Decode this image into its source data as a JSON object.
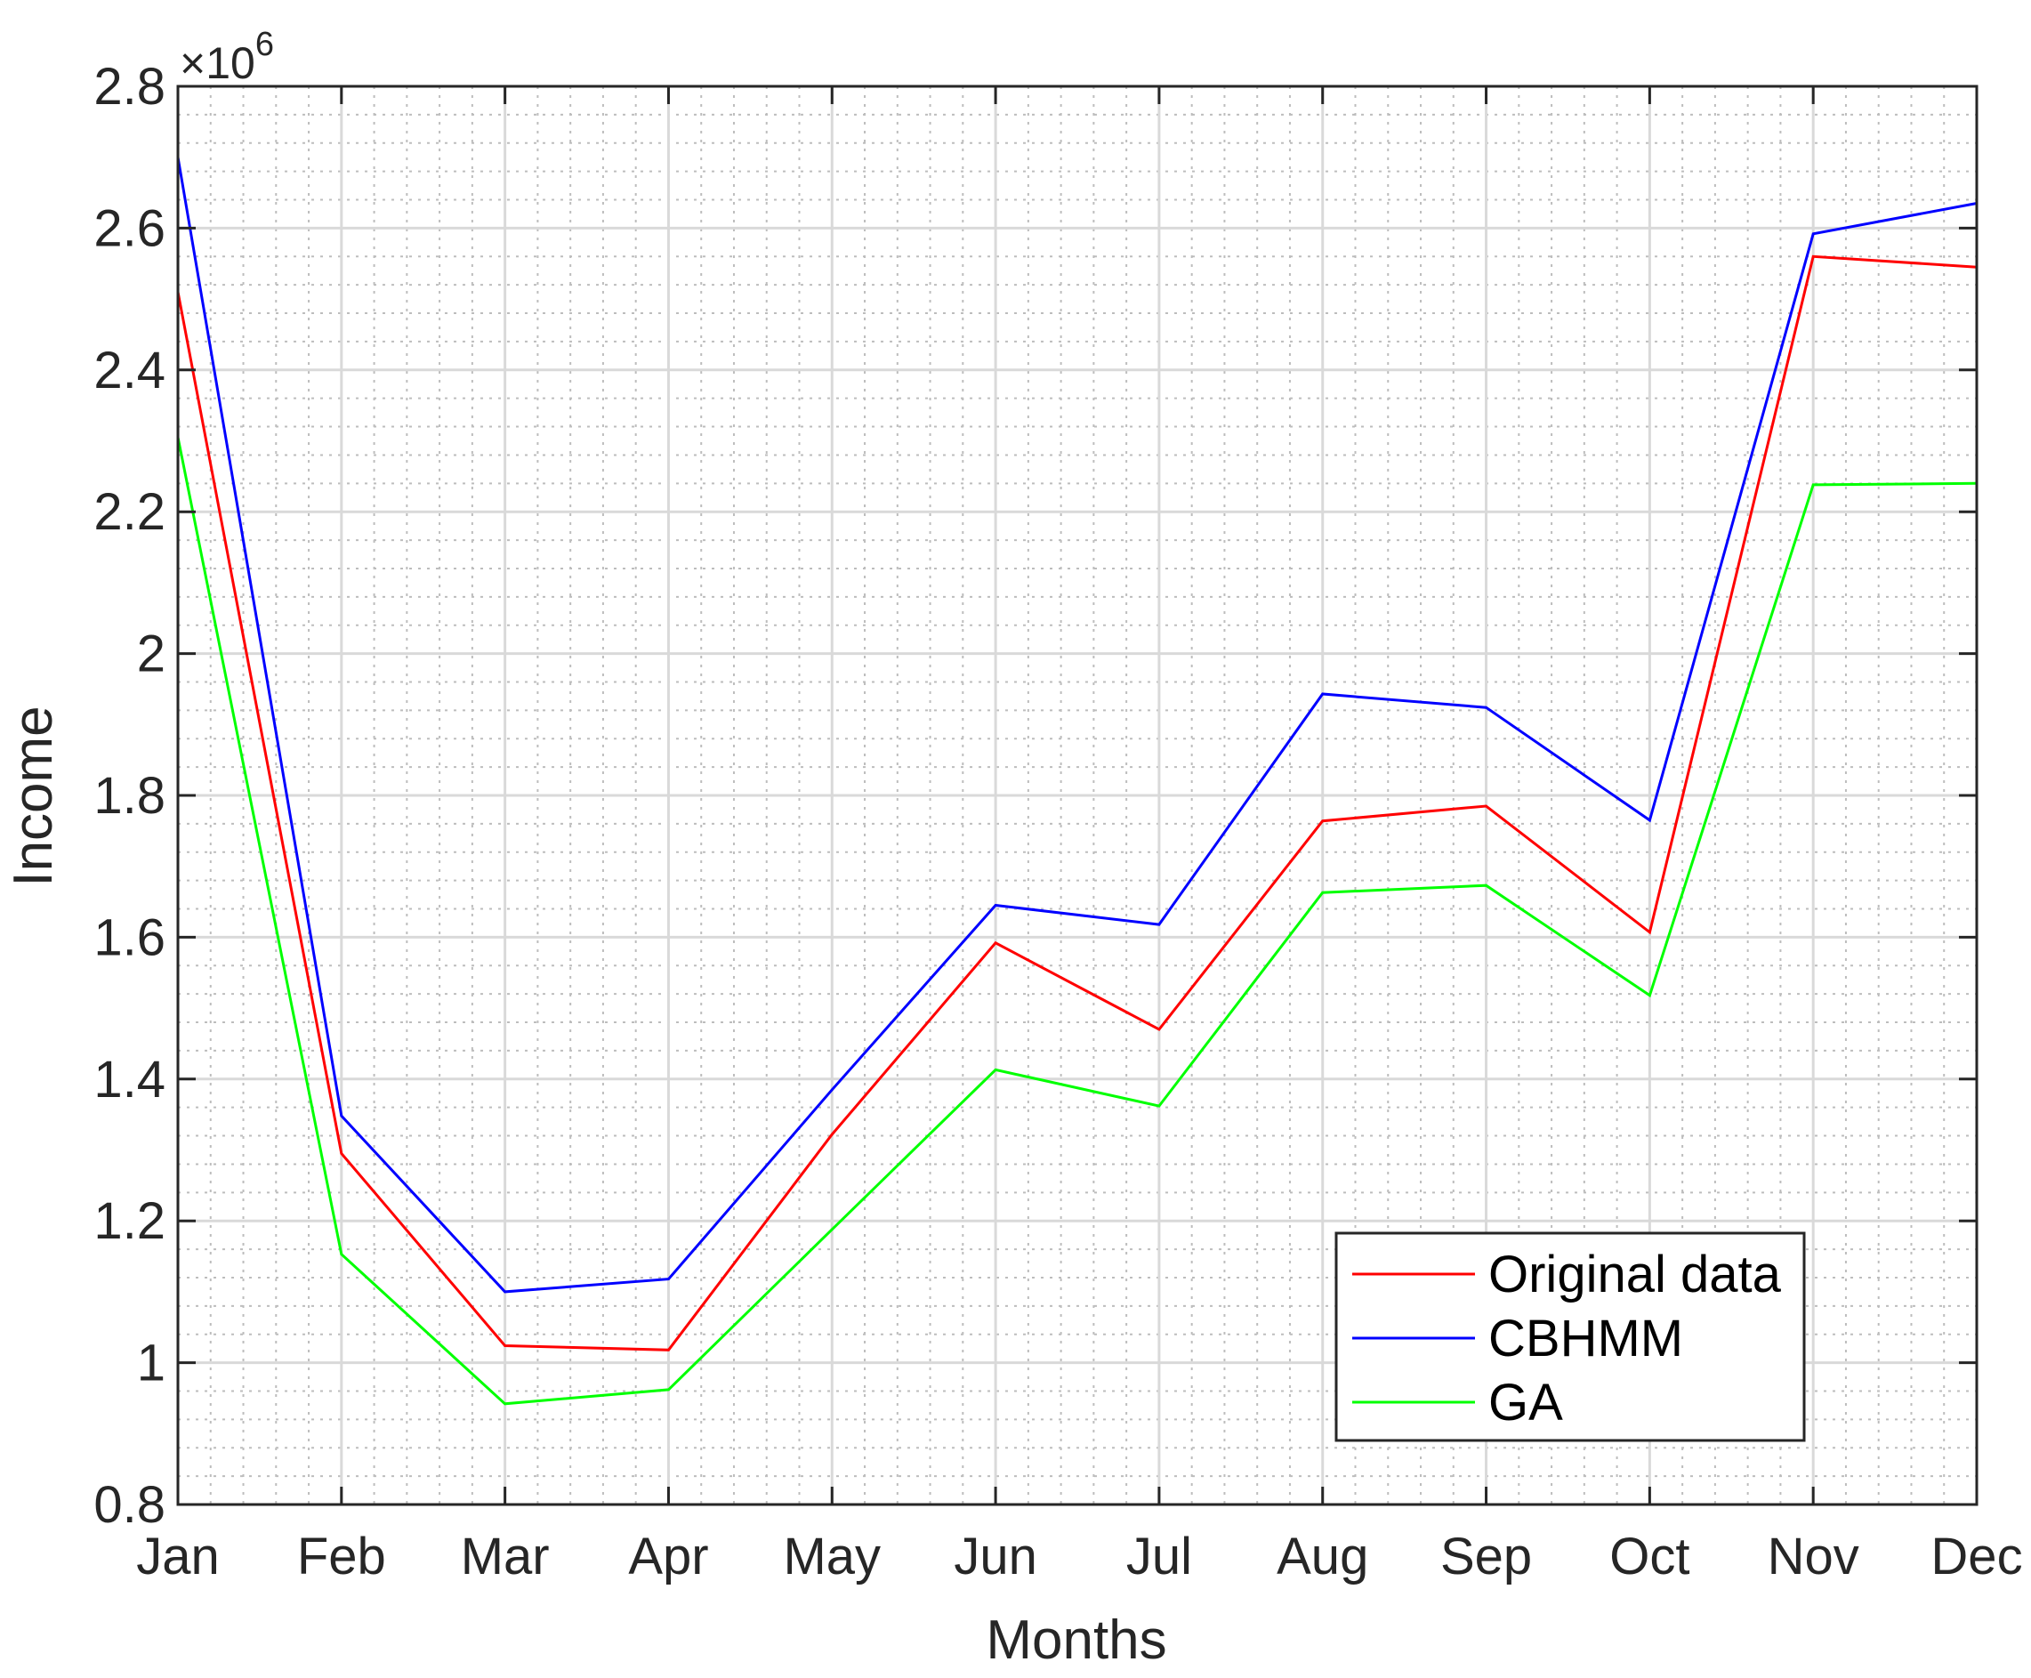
{
  "chart_data": {
    "type": "line",
    "title": "",
    "xlabel": "Months",
    "ylabel": "Income",
    "y_exponent_label": {
      "base": "×10",
      "power": "6"
    },
    "categories": [
      "Jan",
      "Feb",
      "Mar",
      "Apr",
      "May",
      "Jun",
      "Jul",
      "Aug",
      "Sep",
      "Oct",
      "Nov",
      "Dec"
    ],
    "ylim": [
      0.8,
      2.8
    ],
    "yticks": [
      "0.8",
      "1",
      "1.2",
      "1.4",
      "1.6",
      "1.8",
      "2",
      "2.2",
      "2.4",
      "2.6",
      "2.8"
    ],
    "ytick_values": [
      0.8,
      1.0,
      1.2,
      1.4,
      1.6,
      1.8,
      2.0,
      2.2,
      2.4,
      2.6,
      2.8
    ],
    "grid": true,
    "minor_grid": true,
    "legend_position": "bottom-right",
    "series": [
      {
        "name": "Original data",
        "color": "#ff0000",
        "values": [
          2.51,
          1.295,
          1.024,
          1.018,
          1.322,
          1.592,
          1.47,
          1.764,
          1.785,
          1.607,
          2.56,
          2.545
        ]
      },
      {
        "name": "CBHMM",
        "color": "#0000ff",
        "values": [
          2.7,
          1.348,
          1.1,
          1.118,
          1.385,
          1.645,
          1.618,
          1.943,
          1.924,
          1.765,
          2.592,
          2.635
        ]
      },
      {
        "name": "GA",
        "color": "#00ff00",
        "values": [
          2.305,
          1.153,
          0.942,
          0.962,
          1.188,
          1.413,
          1.362,
          1.663,
          1.673,
          1.518,
          2.238,
          2.24
        ]
      }
    ]
  }
}
